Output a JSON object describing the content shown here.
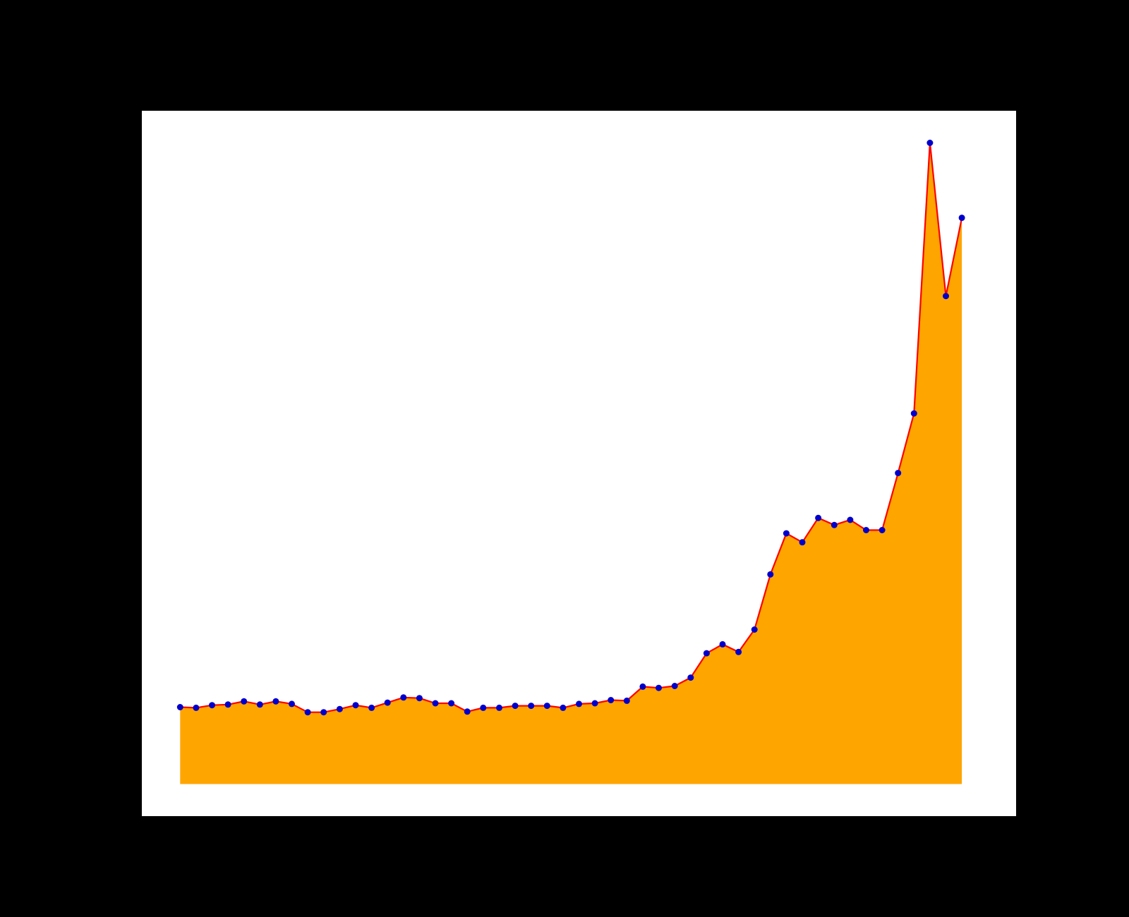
{
  "colors": {
    "figure_background": "#000000",
    "plot_background": "#ffffff",
    "area_fill": "#ffa500",
    "line": "#ff0000",
    "marker": "#0000cc"
  },
  "chart_data": {
    "type": "area",
    "title": "",
    "xlabel": "",
    "ylabel": "",
    "grid": false,
    "legend": "none",
    "x": [
      1,
      2,
      3,
      4,
      5,
      6,
      7,
      8,
      9,
      10,
      11,
      12,
      13,
      14,
      15,
      16,
      17,
      18,
      19,
      20,
      21,
      22,
      23,
      24,
      25,
      26,
      27,
      28,
      29,
      30,
      31,
      32,
      33,
      34,
      35,
      36,
      37,
      38,
      39,
      40,
      41,
      42,
      43,
      44,
      45,
      46,
      47,
      48,
      49,
      50
    ],
    "xlim": [
      -1.4,
      53.4
    ],
    "ylim": [
      -5,
      105
    ],
    "series": [
      {
        "values": [
          12.0,
          11.9,
          12.3,
          12.4,
          12.9,
          12.4,
          12.9,
          12.5,
          11.2,
          11.2,
          11.7,
          12.3,
          11.9,
          12.7,
          13.5,
          13.4,
          12.6,
          12.6,
          11.3,
          11.9,
          11.9,
          12.2,
          12.2,
          12.2,
          11.9,
          12.5,
          12.6,
          13.1,
          13.0,
          15.2,
          15.0,
          15.3,
          16.6,
          20.4,
          21.8,
          20.6,
          24.1,
          32.7,
          39.1,
          37.7,
          41.5,
          40.4,
          41.2,
          39.6,
          39.6,
          48.5,
          57.8,
          100.0,
          76.1,
          88.3
        ]
      }
    ]
  }
}
